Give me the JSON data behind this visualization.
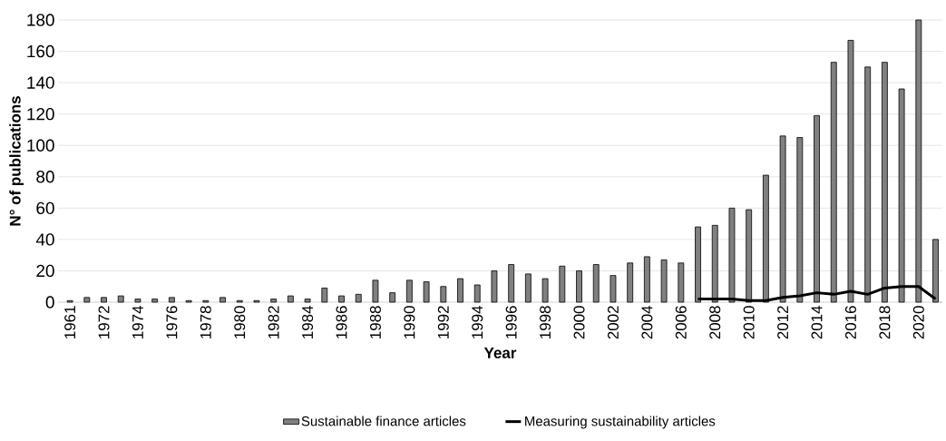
{
  "chart_data": {
    "type": "bar",
    "xlabel": "Year",
    "ylabel": "N° of publications",
    "categories": [
      "1961",
      null,
      "1972",
      null,
      "1974",
      null,
      "1976",
      null,
      "1978",
      null,
      "1980",
      null,
      "1982",
      null,
      "1984",
      null,
      "1986",
      null,
      "1988",
      null,
      "1990",
      null,
      "1992",
      null,
      "1994",
      null,
      "1996",
      null,
      "1998",
      null,
      "2000",
      null,
      "2002",
      null,
      "2004",
      null,
      "2006",
      null,
      "2008",
      null,
      "2010",
      null,
      "2012",
      null,
      "2014",
      null,
      "2016",
      null,
      "2018",
      null,
      "2020",
      null
    ],
    "series": [
      {
        "name": "Sustainable finance articles",
        "color": "#808080",
        "values": [
          1,
          3,
          3,
          4,
          2,
          2,
          3,
          1,
          1,
          3,
          1,
          1,
          2,
          4,
          2,
          9,
          4,
          5,
          14,
          6,
          14,
          13,
          10,
          15,
          11,
          20,
          24,
          18,
          15,
          23,
          20,
          24,
          17,
          25,
          29,
          27,
          25,
          48,
          49,
          60,
          59,
          81,
          106,
          105,
          119,
          153,
          167,
          150,
          153,
          136,
          180,
          40
        ]
      },
      {
        "name": "Measuring sustainability articles",
        "type": "line",
        "color": "#000000",
        "values": [
          null,
          null,
          null,
          null,
          null,
          null,
          null,
          null,
          null,
          null,
          null,
          null,
          null,
          null,
          null,
          null,
          null,
          null,
          null,
          null,
          null,
          null,
          null,
          null,
          null,
          null,
          null,
          null,
          null,
          null,
          null,
          null,
          null,
          null,
          null,
          null,
          null,
          2,
          2,
          2,
          1,
          1,
          3,
          4,
          6,
          5,
          7,
          5,
          9,
          10,
          10,
          2
        ]
      }
    ],
    "ylim": [
      0,
      180
    ],
    "yticks": [
      0,
      20,
      40,
      60,
      80,
      100,
      120,
      140,
      160,
      180
    ],
    "grid": "y",
    "legend": "bottom"
  }
}
